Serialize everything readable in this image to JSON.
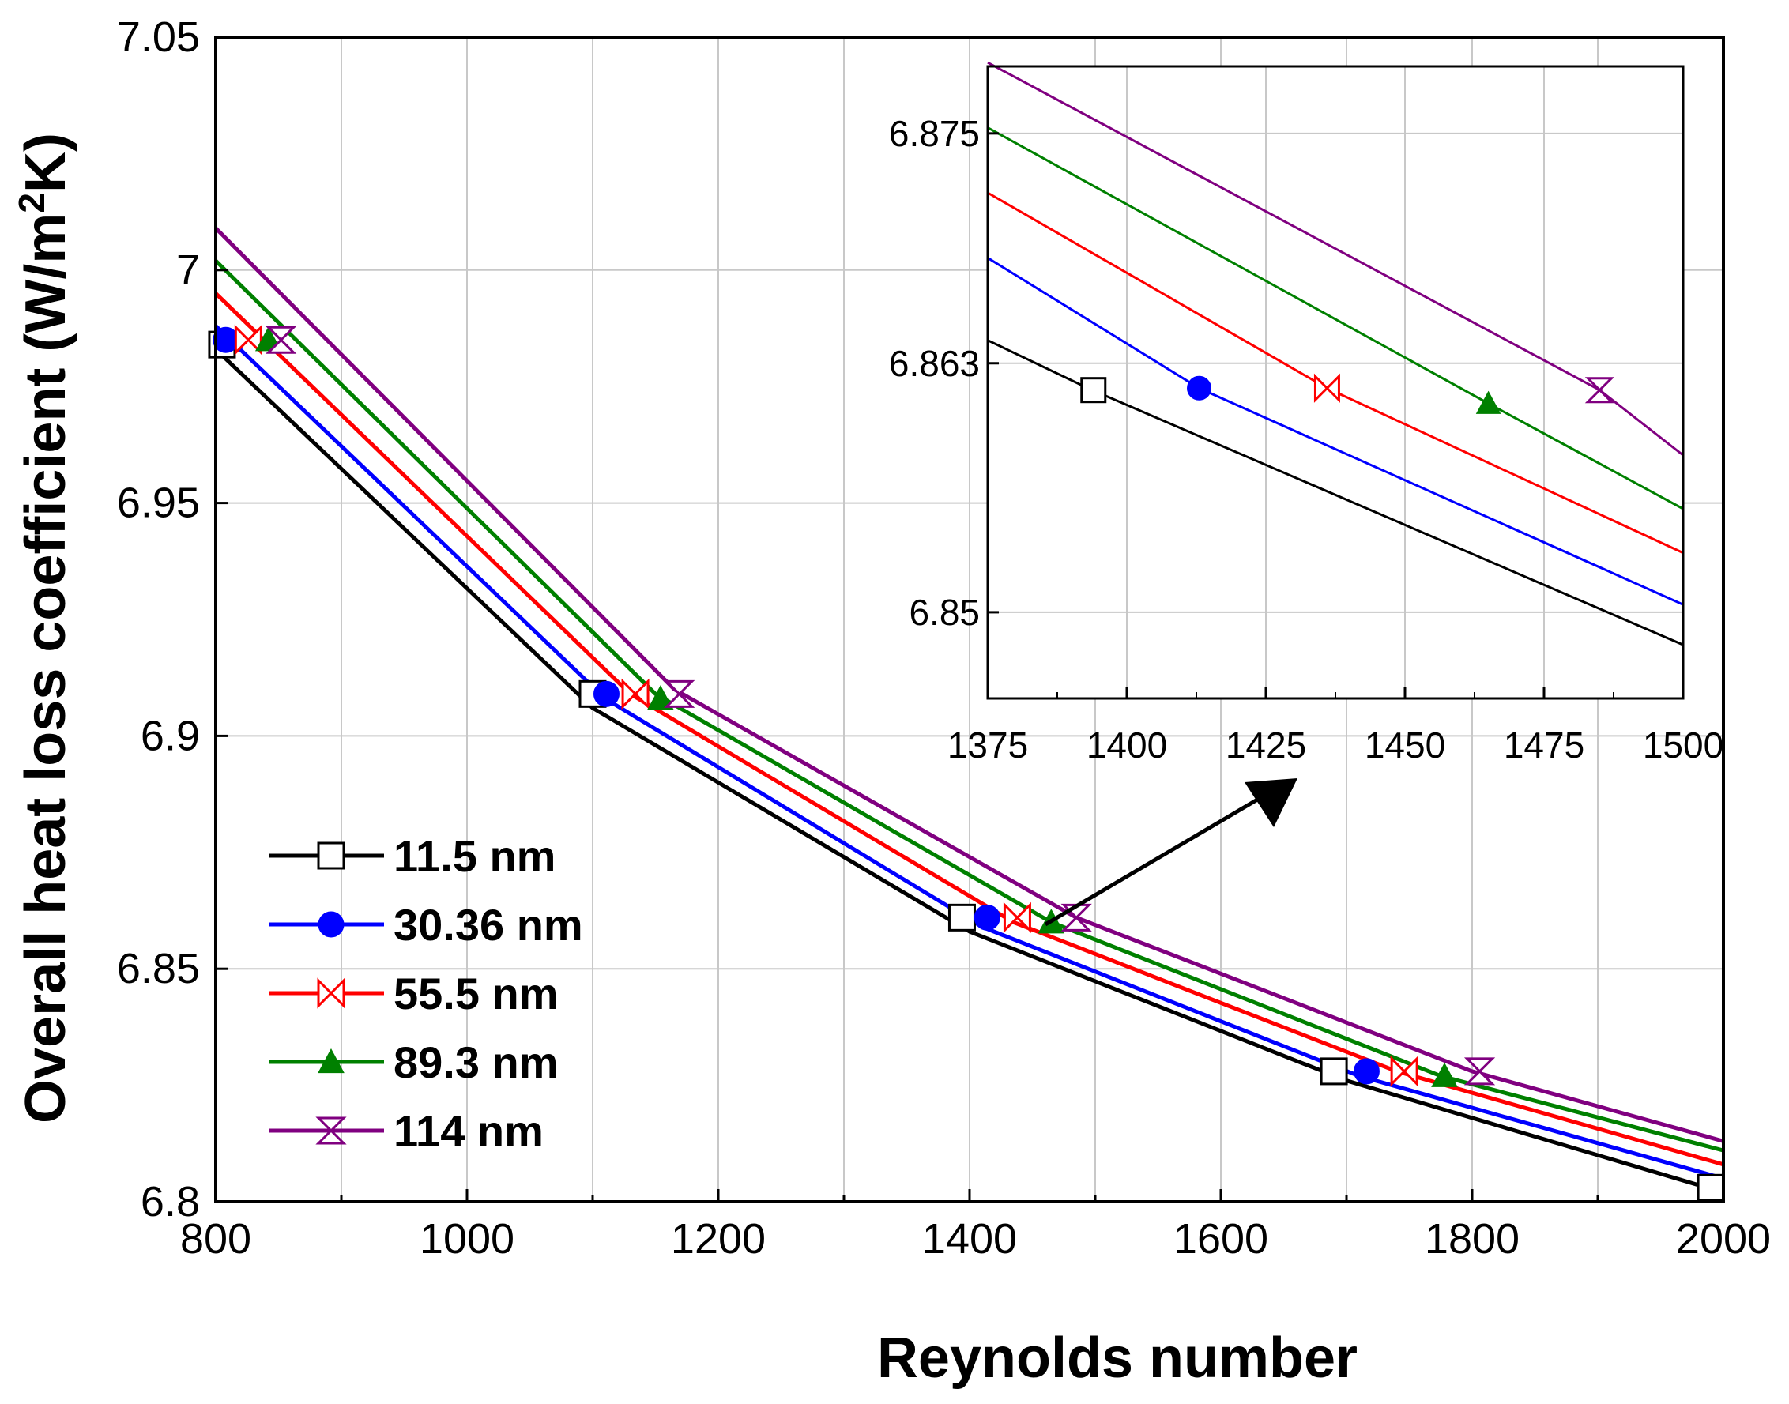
{
  "chart_data": [
    {
      "id": "main",
      "type": "line",
      "title": "",
      "xlabel": "Reynolds number",
      "ylabel": "Overall heat loss coefficient (W/m",
      "ylabel_superscript": "2",
      "ylabel_suffix": "K)",
      "xlim": [
        800,
        2000
      ],
      "ylim": [
        6.8,
        7.05
      ],
      "xticks": [
        800,
        1000,
        1200,
        1400,
        1600,
        1800,
        2000
      ],
      "xtick_labels": [
        "800",
        "1000",
        "1200",
        "1400",
        "1600",
        "1800",
        "2000"
      ],
      "yticks": [
        6.8,
        6.85,
        6.9,
        6.95,
        7.0,
        7.05
      ],
      "ytick_labels": [
        "6.8",
        "6.85",
        "6.9",
        "6.95",
        "7",
        "7.05"
      ],
      "grid": true,
      "legend_position": "bottom-left",
      "series": [
        {
          "name": "11.5 nm",
          "color": "#000000",
          "marker": "square-open",
          "x": [
            800,
            1100,
            1400,
            1700,
            2000
          ],
          "y": [
            6.983,
            6.906,
            6.858,
            6.826,
            6.802
          ],
          "marker_x": [
            805,
            1100,
            1394,
            1690,
            1990
          ],
          "marker_y": [
            6.984,
            6.909,
            6.861,
            6.828,
            6.803
          ]
        },
        {
          "name": "30.36 nm",
          "color": "#0000ff",
          "marker": "circle-filled",
          "x": [
            800,
            1110,
            1410,
            1710,
            2000
          ],
          "y": [
            6.988,
            6.908,
            6.859,
            6.827,
            6.805
          ],
          "marker_x": [
            808,
            1111,
            1414,
            1716
          ],
          "marker_y": [
            6.985,
            6.909,
            6.861,
            6.828
          ]
        },
        {
          "name": "55.5 nm",
          "color": "#ff0000",
          "marker": "bowtie-open",
          "x": [
            800,
            1130,
            1435,
            1740,
            2000
          ],
          "y": [
            6.995,
            6.909,
            6.86,
            6.828,
            6.808
          ],
          "marker_x": [
            826,
            1134,
            1438,
            1746
          ],
          "marker_y": [
            6.985,
            6.909,
            6.861,
            6.828
          ]
        },
        {
          "name": "89.3 nm",
          "color": "#008000",
          "marker": "triangle-filled",
          "x": [
            800,
            1150,
            1465,
            1775,
            2000
          ],
          "y": [
            7.002,
            6.909,
            6.86,
            6.827,
            6.811
          ],
          "marker_x": [
            842,
            1154,
            1465,
            1778
          ],
          "marker_y": [
            6.985,
            6.908,
            6.86,
            6.827
          ]
        },
        {
          "name": "114 nm",
          "color": "#800080",
          "marker": "hourglass-open",
          "x": [
            800,
            1165,
            1485,
            1800,
            2000
          ],
          "y": [
            7.009,
            6.91,
            6.861,
            6.828,
            6.813
          ],
          "marker_x": [
            852,
            1169,
            1485,
            1806
          ],
          "marker_y": [
            6.985,
            6.909,
            6.861,
            6.828
          ]
        }
      ]
    },
    {
      "id": "inset",
      "type": "line",
      "title": "",
      "xlim": [
        1375,
        1500
      ],
      "ylim": [
        6.8455,
        6.8785
      ],
      "xticks": [
        1375,
        1400,
        1425,
        1450,
        1475,
        1500
      ],
      "xtick_labels": [
        "1375",
        "1400",
        "1425",
        "1450",
        "1475",
        "1500"
      ],
      "yticks": [
        6.85,
        6.863,
        6.875
      ],
      "ytick_labels": [
        "6.85",
        "6.863",
        "6.875"
      ],
      "grid": true,
      "annotation": "arrow pointing from the 1480 data region of the main plot to the zoomed inset",
      "series": [
        {
          "name": "11.5 nm",
          "color": "#000000",
          "marker": "square-open",
          "x": [
            1375,
            1393,
            1500
          ],
          "y": [
            6.8642,
            6.8617,
            6.8483
          ],
          "marker_x": [
            1394
          ],
          "marker_y": [
            6.8616
          ]
        },
        {
          "name": "30.36 nm",
          "color": "#0000ff",
          "marker": "circle-filled",
          "x": [
            1375,
            1413,
            1500
          ],
          "y": [
            6.8685,
            6.8617,
            6.8504
          ],
          "marker_x": [
            1413
          ],
          "marker_y": [
            6.8617
          ]
        },
        {
          "name": "55.5 nm",
          "color": "#ff0000",
          "marker": "bowtie-open",
          "x": [
            1375,
            1436,
            1500
          ],
          "y": [
            6.8719,
            6.8617,
            6.8531
          ],
          "marker_x": [
            1436
          ],
          "marker_y": [
            6.8617
          ]
        },
        {
          "name": "89.3 nm",
          "color": "#008000",
          "marker": "triangle-filled",
          "x": [
            1375,
            1465,
            1500
          ],
          "y": [
            6.8753,
            6.8609,
            6.8554
          ],
          "marker_x": [
            1465
          ],
          "marker_y": [
            6.8609
          ]
        },
        {
          "name": "114 nm",
          "color": "#800080",
          "marker": "hourglass-open",
          "x": [
            1375,
            1485,
            1500
          ],
          "y": [
            6.8787,
            6.8616,
            6.8582
          ],
          "marker_x": [
            1485
          ],
          "marker_y": [
            6.8616
          ]
        }
      ]
    }
  ]
}
